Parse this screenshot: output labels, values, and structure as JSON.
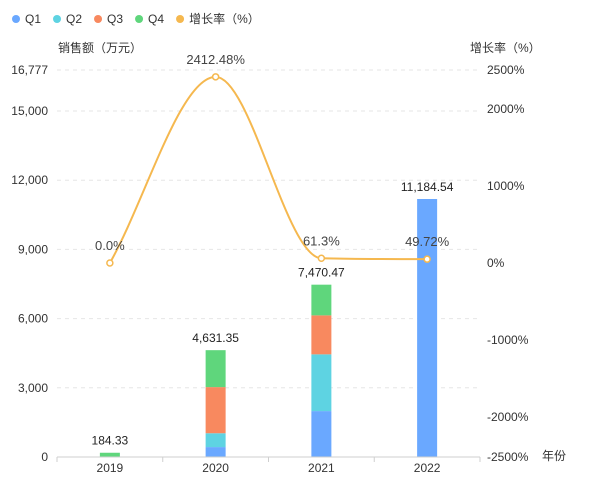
{
  "chart_data": {
    "type": "bar",
    "categories": [
      "2019",
      "2020",
      "2021",
      "2022"
    ],
    "stacked": true,
    "series": [
      {
        "name": "Q1",
        "color": "#6aa8ff",
        "values": [
          0,
          430,
          1990,
          11184.54
        ]
      },
      {
        "name": "Q2",
        "color": "#5ed3e2",
        "values": [
          0,
          600,
          2460,
          0
        ]
      },
      {
        "name": "Q3",
        "color": "#f8895f",
        "values": [
          0,
          2000,
          1690,
          0
        ]
      },
      {
        "name": "Q4",
        "color": "#5fd67c",
        "values": [
          184.33,
          1601.35,
          1330.47,
          0
        ]
      }
    ],
    "totals": [
      184.33,
      4631.35,
      7470.47,
      11184.54
    ],
    "total_labels": [
      "184.33",
      "4,631.35",
      "7,470.47",
      "11,184.54"
    ],
    "line_series": {
      "name": "增长率（%）",
      "color": "#f5b84f",
      "values": [
        0.0,
        2412.48,
        61.3,
        49.72
      ],
      "labels": [
        "0.0%",
        "2412.48%",
        "61.3%",
        "49.72%"
      ]
    },
    "ylabel_left": "销售额（万元）",
    "ylabel_right": "增长率（%）",
    "xlabel": "年份",
    "ylim_left": [
      0,
      16777
    ],
    "yticks_left": [
      "0",
      "3,000",
      "6,000",
      "9,000",
      "12,000",
      "15,000",
      "16,777"
    ],
    "ylim_right": [
      -2500,
      2500
    ],
    "yticks_right": [
      "-2500%",
      "-2000%",
      "-1000%",
      "0%",
      "1000%",
      "2000%",
      "2500%"
    ],
    "legend": [
      "Q1",
      "Q2",
      "Q3",
      "Q4",
      "增长率（%）"
    ],
    "legend_position": "top-left",
    "grid": "horizontal dashed"
  }
}
